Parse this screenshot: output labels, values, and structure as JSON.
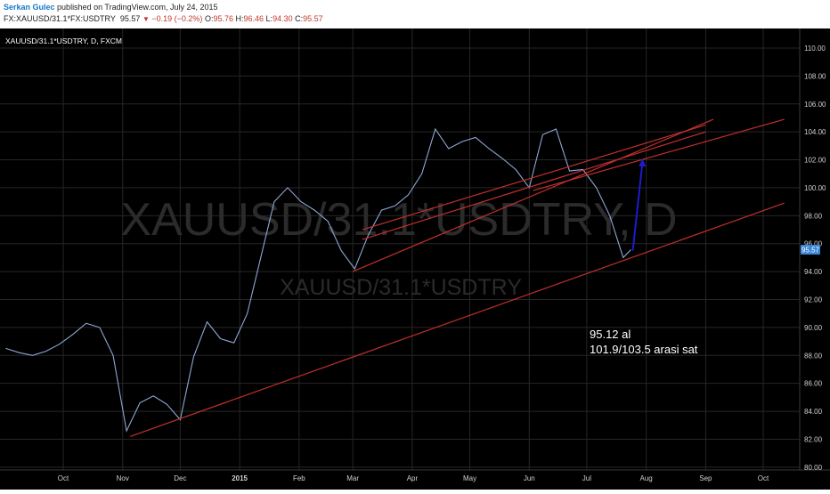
{
  "header": {
    "author": "Serkan Gulec",
    "published": "published on TradingView.com, July 24, 2015",
    "symbol": "FX:XAUUSD/31.1*FX:USDTRY",
    "last": "95.57",
    "change": "−0.19 (−0.2%)",
    "open_label": "O:",
    "open": "95.76",
    "high_label": "H:",
    "high": "96.46",
    "low_label": "L:",
    "low": "94.30",
    "close_label": "C:",
    "close": "95.57"
  },
  "chart_title": "XAUUSD/31.1*USDTRY, D, FXCM",
  "watermark": {
    "large": "XAUUSD/31.1*USDTRY, D",
    "small": "XAUUSD/31.1*USDTRY"
  },
  "annotation": {
    "line1": "95.12 al",
    "line2": "101.9/103.5 arasi sat"
  },
  "price_label": "95.57",
  "colors": {
    "background": "#000000",
    "price_line": "#8fa8d6",
    "trend_lines": "#c0302c",
    "arrow": "#1c1ccc",
    "price_label_bg": "#3a86d6"
  },
  "chart_data": {
    "type": "line",
    "title": "XAUUSD/31.1*USDTRY, D, FXCM",
    "ylim": [
      79.8,
      111.4
    ],
    "y_ticks": [
      "80.00",
      "82.00",
      "84.00",
      "86.00",
      "88.00",
      "90.00",
      "92.00",
      "94.00",
      "96.00",
      "98.00",
      "100.00",
      "102.00",
      "104.00",
      "106.00",
      "108.00",
      "110.00"
    ],
    "x_ticks": [
      "Oct",
      "Nov",
      "Dec",
      "2015",
      "Feb",
      "Mar",
      "Apr",
      "May",
      "Jun",
      "Jul",
      "Aug",
      "Sep",
      "Oct"
    ],
    "x_tick_dates": [
      "2014-10-01",
      "2014-11-01",
      "2014-12-01",
      "2015-01-01",
      "2015-02-01",
      "2015-03-01",
      "2015-04-01",
      "2015-05-01",
      "2015-06-01",
      "2015-07-01",
      "2015-08-01",
      "2015-09-01",
      "2015-10-01"
    ],
    "series": [
      {
        "x": [
          "2014-09-01",
          "2014-09-08",
          "2014-09-15",
          "2014-09-22",
          "2014-09-29",
          "2014-10-06",
          "2014-10-13",
          "2014-10-20",
          "2014-10-27",
          "2014-11-03",
          "2014-11-10",
          "2014-11-17",
          "2014-11-24",
          "2014-12-01",
          "2014-12-08",
          "2014-12-15",
          "2014-12-22",
          "2014-12-29",
          "2015-01-05",
          "2015-01-12",
          "2015-01-19",
          "2015-01-26",
          "2015-02-02",
          "2015-02-09",
          "2015-02-16",
          "2015-02-23",
          "2015-03-02",
          "2015-03-09",
          "2015-03-16",
          "2015-03-23",
          "2015-03-30",
          "2015-04-06",
          "2015-04-13",
          "2015-04-20",
          "2015-04-27",
          "2015-05-04",
          "2015-05-11",
          "2015-05-18",
          "2015-05-25",
          "2015-06-01",
          "2015-06-08",
          "2015-06-15",
          "2015-06-22",
          "2015-06-29",
          "2015-07-06",
          "2015-07-13",
          "2015-07-20",
          "2015-07-24"
        ],
        "y": [
          88.5,
          88.2,
          88.0,
          88.3,
          88.8,
          89.5,
          90.3,
          90.0,
          88.0,
          82.6,
          84.6,
          85.1,
          84.5,
          83.4,
          87.9,
          90.4,
          89.2,
          88.9,
          91.0,
          95.0,
          99.0,
          100.0,
          99.0,
          98.4,
          97.6,
          95.5,
          94.2,
          96.6,
          98.4,
          98.7,
          99.5,
          101.0,
          104.2,
          102.8,
          103.3,
          103.6,
          102.8,
          102.1,
          101.3,
          100.0,
          103.8,
          104.2,
          101.2,
          101.3,
          100.0,
          98.0,
          95.0,
          95.57
        ]
      }
    ],
    "overlays": {
      "trend_lines": [
        {
          "from": [
            "2014-11-05",
            82.2
          ],
          "to": [
            "2015-10-12",
            98.9
          ]
        },
        {
          "from": [
            "2015-03-01",
            94.0
          ],
          "to": [
            "2015-09-05",
            104.9
          ]
        },
        {
          "from": [
            "2015-03-06",
            96.3
          ],
          "to": [
            "2015-09-01",
            104.0
          ]
        },
        {
          "from": [
            "2015-03-06",
            97.0
          ],
          "to": [
            "2015-09-01",
            104.5
          ]
        },
        {
          "from": [
            "2015-06-03",
            99.8
          ],
          "to": [
            "2015-10-12",
            104.9
          ]
        }
      ],
      "arrow": {
        "from": [
          "2015-07-25",
          95.5
        ],
        "to": [
          "2015-07-30",
          102.1
        ]
      }
    }
  }
}
